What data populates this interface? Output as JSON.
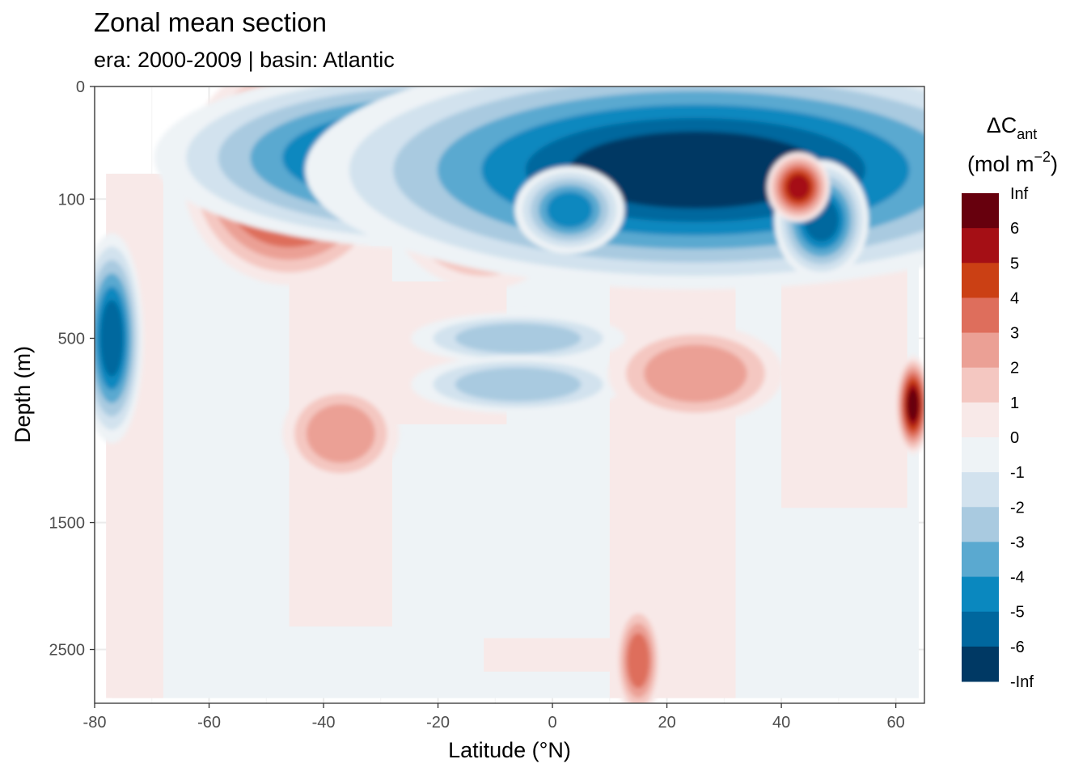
{
  "header": {
    "title": "Zonal mean section",
    "subtitle": "era:  2000-2009 | basin: Atlantic"
  },
  "chart_data": {
    "type": "heatmap",
    "title": "Zonal mean section",
    "subtitle": "era:  2000-2009 | basin: Atlantic",
    "xlabel": "Latitude (°N)",
    "ylabel": "Depth (m)",
    "xlim": [
      -80,
      65
    ],
    "ylim_depth": [
      0,
      3000
    ],
    "y_scale": "sqrt, reversed",
    "x_ticks": [
      -80,
      -60,
      -40,
      -20,
      0,
      20,
      40,
      60
    ],
    "x_tick_labels": [
      "-80",
      "-60",
      "-40",
      "-20",
      "0",
      "20",
      "40",
      "60"
    ],
    "y_ticks": [
      0,
      100,
      500,
      1500,
      2500
    ],
    "y_tick_labels": [
      "0",
      "100",
      "500",
      "1500",
      "2500"
    ],
    "grid": true,
    "legend": {
      "placement": "right",
      "title_main": "ΔC",
      "title_sub": "ant",
      "title_unit_pre": "(mol m",
      "title_unit_sup": "−2",
      "title_unit_post": ")",
      "breaks": [
        "Inf",
        "6",
        "5",
        "4",
        "3",
        "2",
        "1",
        "0",
        "-1",
        "-2",
        "-3",
        "-4",
        "-5",
        "-6",
        "-Inf"
      ],
      "bin_colors": [
        "#67000d",
        "#a50f15",
        "#cb4014",
        "#de6e5c",
        "#eba095",
        "#f4c7c1",
        "#f8e9e8",
        "#eef3f6",
        "#d2e2ee",
        "#a9cae0",
        "#5aa9d0",
        "#0a88bf",
        "#00679e",
        "#003964"
      ]
    },
    "features": [
      {
        "lat": -46,
        "depth": 60,
        "value": 7,
        "rlat": 6,
        "rdepth": 45
      },
      {
        "lat": -12,
        "depth": 55,
        "value": 7,
        "rlat": 6,
        "rdepth": 45
      },
      {
        "lat": -20,
        "depth": 40,
        "value": -7,
        "rlat": 16,
        "rdepth": 30
      },
      {
        "lat": 25,
        "depth": 55,
        "value": -7,
        "rlat": 22,
        "rdepth": 45
      },
      {
        "lat": 3,
        "depth": 120,
        "value": -5,
        "rlat": 4,
        "rdepth": 35
      },
      {
        "lat": 47,
        "depth": 140,
        "value": -6,
        "rlat": 3,
        "rdepth": 45
      },
      {
        "lat": 43,
        "depth": 80,
        "value": 6,
        "rlat": 2,
        "rdepth": 20
      },
      {
        "lat": -77,
        "depth": 500,
        "value": -6,
        "rlat": 2,
        "rdepth": 150
      },
      {
        "lat": -6,
        "depth": 500,
        "value": -3,
        "rlat": 11,
        "rdepth": 60
      },
      {
        "lat": -6,
        "depth": 700,
        "value": -3,
        "rlat": 11,
        "rdepth": 80
      },
      {
        "lat": 25,
        "depth": 650,
        "value": 3,
        "rlat": 9,
        "rdepth": 130
      },
      {
        "lat": -37,
        "depth": 950,
        "value": 3,
        "rlat": 6,
        "rdepth": 160
      },
      {
        "lat": 15,
        "depth": 2600,
        "value": 4,
        "rlat": 2,
        "rdepth": 250
      },
      {
        "lat": 63,
        "depth": 800,
        "value": 7,
        "rlat": 1,
        "rdepth": 80
      }
    ]
  }
}
